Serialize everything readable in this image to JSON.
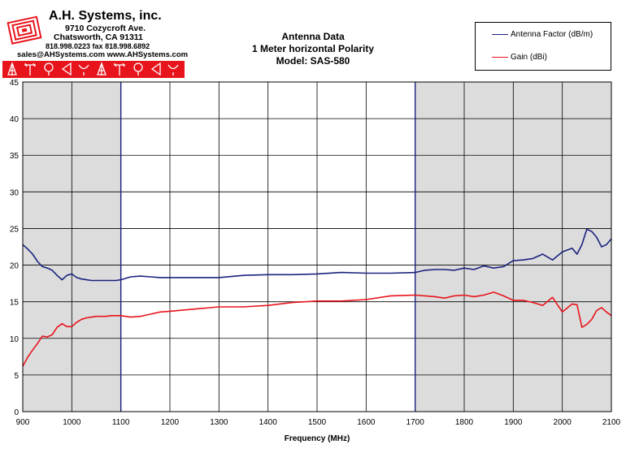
{
  "company": {
    "name": "A.H. Systems, inc.",
    "address": "9710 Cozycroft Ave.",
    "city": "Chatsworth, CA 91311",
    "phone": "818.998.0223 fax 818.998.6892",
    "web": "sales@AHSystems.com www.AHSystems.com"
  },
  "colors": {
    "antenna_factor": "#1a237e",
    "gain": "#e8141c",
    "shade": "#dcdcdc",
    "brand_red": "#e8141c"
  },
  "chart_data": {
    "type": "line",
    "title": [
      "Antenna Data",
      "1 Meter horizontal Polarity",
      "Model: SAS-580"
    ],
    "xlabel": "Frequency (MHz)",
    "ylabel": "",
    "xlim": [
      900,
      2100
    ],
    "ylim": [
      0,
      45
    ],
    "xticks": [
      900,
      1000,
      1100,
      1200,
      1300,
      1400,
      1500,
      1600,
      1700,
      1800,
      1900,
      2000,
      2100
    ],
    "yticks": [
      0,
      5,
      10,
      15,
      20,
      25,
      30,
      35,
      40,
      45
    ],
    "grid": true,
    "legend_position": "top-right",
    "shaded_ranges": [
      [
        900,
        1100
      ],
      [
        1700,
        2100
      ]
    ],
    "series": [
      {
        "name": "Antenna Factor (dB/m)",
        "x": [
          900,
          910,
          920,
          930,
          940,
          950,
          960,
          970,
          980,
          990,
          1000,
          1010,
          1020,
          1030,
          1040,
          1050,
          1060,
          1070,
          1080,
          1090,
          1100,
          1120,
          1140,
          1160,
          1180,
          1200,
          1250,
          1300,
          1350,
          1400,
          1450,
          1500,
          1550,
          1600,
          1650,
          1700,
          1720,
          1740,
          1760,
          1780,
          1800,
          1820,
          1840,
          1860,
          1880,
          1900,
          1920,
          1940,
          1960,
          1980,
          2000,
          2020,
          2030,
          2040,
          2050,
          2060,
          2070,
          2080,
          2090,
          2100
        ],
        "y": [
          22.8,
          22.2,
          21.5,
          20.5,
          19.8,
          19.6,
          19.3,
          18.6,
          18.0,
          18.6,
          18.8,
          18.3,
          18.1,
          18.0,
          17.9,
          17.9,
          17.9,
          17.9,
          17.9,
          17.9,
          18.0,
          18.4,
          18.5,
          18.4,
          18.3,
          18.3,
          18.3,
          18.3,
          18.6,
          18.7,
          18.7,
          18.8,
          19.0,
          18.9,
          18.9,
          19.0,
          19.3,
          19.4,
          19.4,
          19.3,
          19.6,
          19.4,
          19.9,
          19.6,
          19.8,
          20.6,
          20.7,
          20.9,
          21.5,
          20.7,
          21.8,
          22.3,
          21.5,
          22.8,
          24.9,
          24.6,
          23.8,
          22.5,
          22.8,
          23.6
        ]
      },
      {
        "name": "Gain (dBi)",
        "x": [
          900,
          910,
          920,
          930,
          940,
          950,
          960,
          970,
          980,
          990,
          1000,
          1010,
          1020,
          1030,
          1040,
          1050,
          1060,
          1070,
          1080,
          1090,
          1100,
          1120,
          1140,
          1160,
          1180,
          1200,
          1250,
          1300,
          1350,
          1400,
          1450,
          1500,
          1550,
          1600,
          1650,
          1700,
          1720,
          1740,
          1760,
          1780,
          1800,
          1820,
          1840,
          1860,
          1880,
          1900,
          1920,
          1940,
          1960,
          1980,
          2000,
          2020,
          2030,
          2040,
          2050,
          2060,
          2070,
          2080,
          2090,
          2100
        ],
        "y": [
          6.2,
          7.4,
          8.4,
          9.3,
          10.3,
          10.2,
          10.5,
          11.5,
          12.0,
          11.6,
          11.6,
          12.2,
          12.6,
          12.8,
          12.9,
          13.0,
          13.0,
          13.0,
          13.1,
          13.1,
          13.1,
          12.9,
          13.0,
          13.3,
          13.6,
          13.7,
          14.0,
          14.3,
          14.3,
          14.5,
          14.9,
          15.1,
          15.1,
          15.3,
          15.8,
          15.9,
          15.8,
          15.7,
          15.5,
          15.8,
          15.9,
          15.7,
          15.9,
          16.3,
          15.8,
          15.2,
          15.2,
          14.9,
          14.5,
          15.6,
          13.6,
          14.7,
          14.6,
          11.5,
          11.9,
          12.6,
          13.8,
          14.2,
          13.6,
          13.1
        ]
      }
    ]
  }
}
